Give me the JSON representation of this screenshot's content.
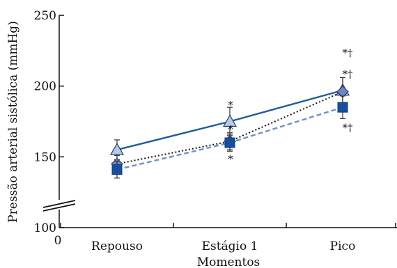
{
  "chart_data": {
    "type": "line",
    "ylabel": "Pressão arterial sistólica (mmHg)",
    "xlabel": "Momentos",
    "categories": [
      "Repouso",
      "Estágio 1",
      "Pico"
    ],
    "ylim": [
      100,
      250
    ],
    "yticks": [
      100,
      150,
      200,
      250
    ],
    "x_origin_label": "0",
    "axis_break": true,
    "grid": false,
    "legend": "none",
    "series": [
      {
        "marker": "triangle",
        "line_style": "solid",
        "color": "#1f5a9e",
        "fill": "#b9c8e6",
        "values": [
          155,
          175,
          197
        ],
        "errors": [
          7,
          10,
          9
        ]
      },
      {
        "marker": "diamond",
        "line_style": "dotted",
        "color": "#111111",
        "fill": "#6f86bf",
        "values": [
          145,
          161,
          196
        ],
        "errors": [
          6,
          6,
          10
        ]
      },
      {
        "marker": "square",
        "line_style": "dashed",
        "color": "#6b93c7",
        "fill": "#1550a0",
        "values": [
          141,
          160,
          185
        ],
        "errors": [
          6,
          6,
          8
        ]
      }
    ],
    "annotations": [
      {
        "category": "Estágio 1",
        "y": 187,
        "text": "*"
      },
      {
        "category": "Estágio 1",
        "y": 170,
        "text": "*"
      },
      {
        "category": "Estágio 1",
        "y": 149,
        "text": "*"
      },
      {
        "category": "Pico",
        "y": 224,
        "text": "*†"
      },
      {
        "category": "Pico",
        "y": 209,
        "text": "*†"
      },
      {
        "category": "Pico",
        "y": 171,
        "text": "*†"
      }
    ]
  }
}
